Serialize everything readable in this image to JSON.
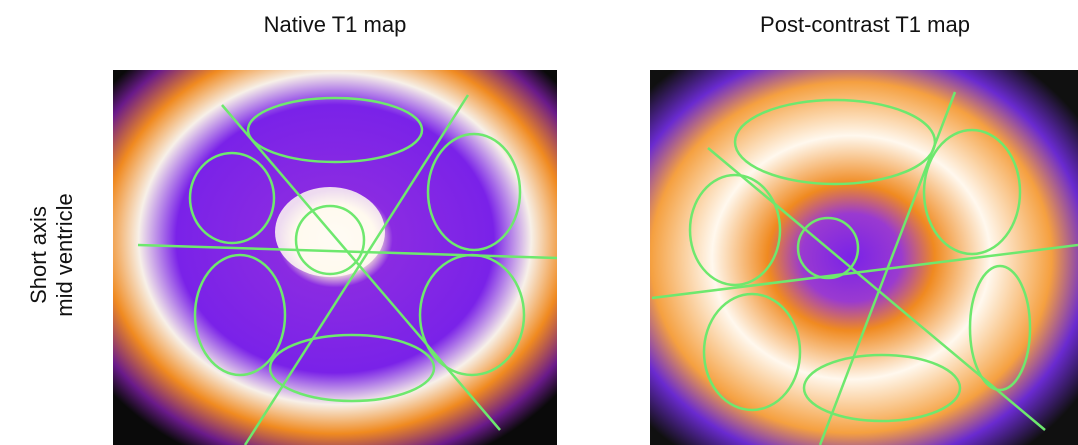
{
  "panels": [
    {
      "title": "Native T1 map"
    },
    {
      "title": "Post-contrast T1 map"
    }
  ],
  "row_label": [
    "Short axis",
    "mid ventricle"
  ]
}
